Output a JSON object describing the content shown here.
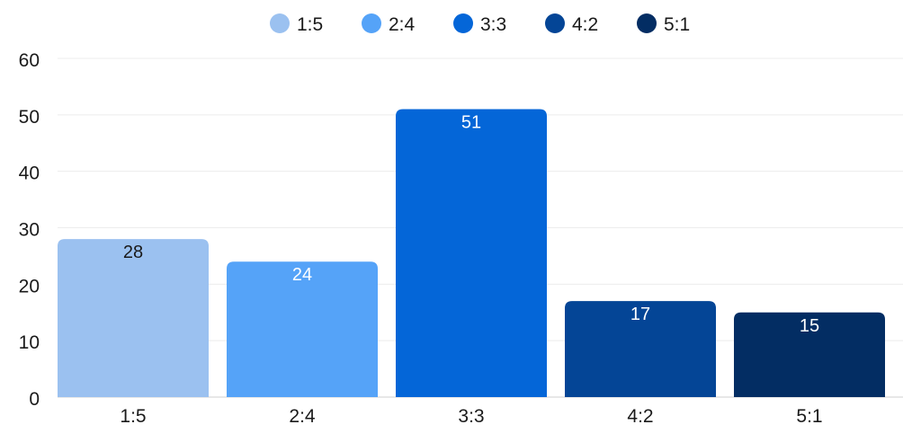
{
  "chart_data": {
    "type": "bar",
    "categories": [
      "1:5",
      "2:4",
      "3:3",
      "4:2",
      "5:1"
    ],
    "values": [
      28,
      24,
      51,
      17,
      15
    ],
    "colors": [
      "#9bc1f0",
      "#55a3f8",
      "#0466d8",
      "#044596",
      "#032d63"
    ],
    "value_label_colors": [
      "#1a1a1a",
      "#ffffff",
      "#ffffff",
      "#ffffff",
      "#ffffff"
    ],
    "legend": [
      "1:5",
      "2:4",
      "3:3",
      "4:2",
      "5:1"
    ],
    "legend_position": "top-center",
    "y_ticks": [
      "0",
      "10",
      "20",
      "30",
      "40",
      "50",
      "60"
    ],
    "ylim": [
      0,
      60
    ],
    "grid": true,
    "title": "",
    "xlabel": "",
    "ylabel": ""
  }
}
